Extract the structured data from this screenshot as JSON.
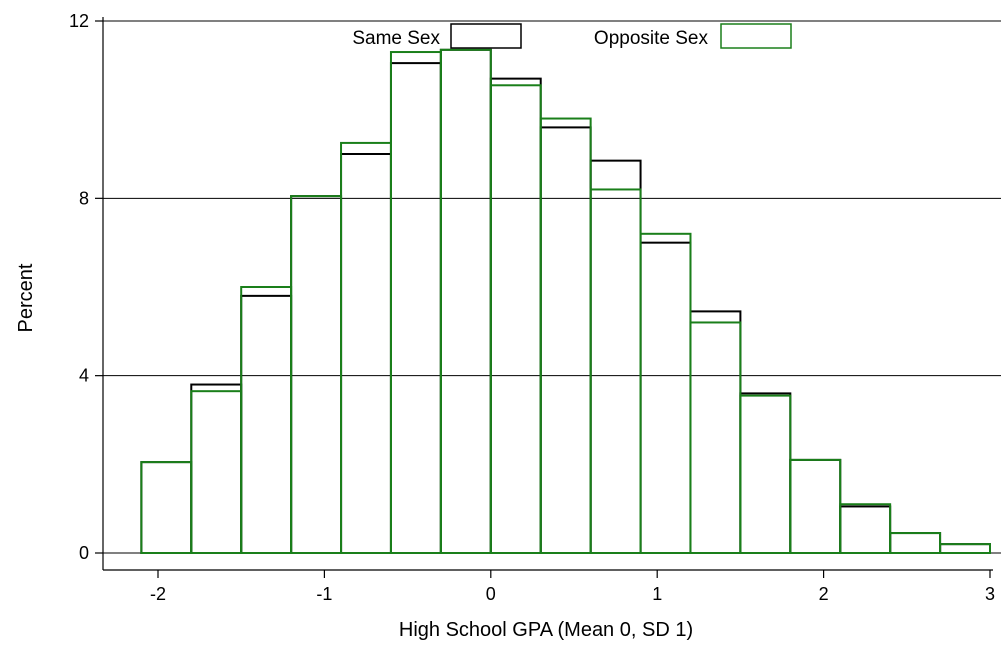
{
  "chart_data": {
    "type": "bar",
    "subtype": "overlaid-histogram",
    "xlabel": "High School GPA (Mean 0, SD 1)",
    "ylabel": "Percent",
    "xlim": [
      -2.1,
      3.0
    ],
    "ylim": [
      0,
      12
    ],
    "x_ticks": [
      -2,
      -1,
      0,
      1,
      2,
      3
    ],
    "x_tick_labels": [
      "-2",
      "-1",
      "0",
      "1",
      "2",
      "3"
    ],
    "y_ticks": [
      0,
      4,
      8,
      12
    ],
    "y_tick_labels": [
      "0",
      "4",
      "8",
      "12"
    ],
    "grid": "horizontal",
    "legend_position": "top-center",
    "bin_edges": [
      -2.1,
      -1.8,
      -1.5,
      -1.2,
      -0.9,
      -0.6,
      -0.3,
      0.0,
      0.3,
      0.6,
      0.9,
      1.2,
      1.5,
      1.8,
      2.1,
      2.4,
      2.7,
      3.0
    ],
    "series": [
      {
        "name": "Same Sex",
        "color": "#000000",
        "values": [
          2.05,
          3.8,
          5.8,
          8.05,
          9.0,
          11.05,
          11.35,
          10.7,
          9.6,
          8.85,
          7.0,
          5.45,
          3.6,
          2.1,
          1.05,
          0.45,
          0.2
        ]
      },
      {
        "name": "Opposite Sex",
        "color": "#1a7f1a",
        "values": [
          2.05,
          3.65,
          6.0,
          8.05,
          9.25,
          11.3,
          11.35,
          10.55,
          9.8,
          8.2,
          7.2,
          5.2,
          3.55,
          2.1,
          1.1,
          0.45,
          0.2
        ]
      }
    ]
  }
}
